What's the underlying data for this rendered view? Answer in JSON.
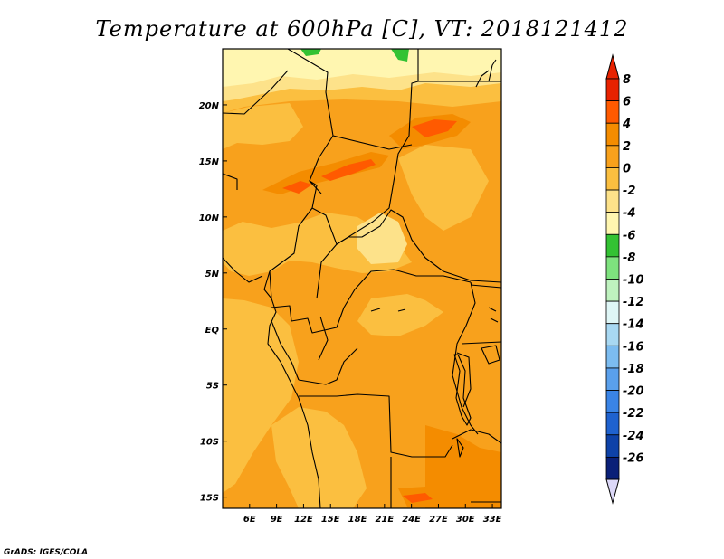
{
  "title": "Temperature at 600hPa [C], VT: 2018121412",
  "credit": "GrADS: IGES/COLA",
  "map": {
    "lon_range": [
      3,
      34
    ],
    "lat_range": [
      -16,
      25
    ],
    "x_ticks": [
      {
        "lon": 6,
        "label": "6E"
      },
      {
        "lon": 9,
        "label": "9E"
      },
      {
        "lon": 12,
        "label": "12E"
      },
      {
        "lon": 15,
        "label": "15E"
      },
      {
        "lon": 18,
        "label": "18E"
      },
      {
        "lon": 21,
        "label": "21E"
      },
      {
        "lon": 24,
        "label": "24E"
      },
      {
        "lon": 27,
        "label": "27E"
      },
      {
        "lon": 30,
        "label": "30E"
      },
      {
        "lon": 33,
        "label": "33E"
      }
    ],
    "y_ticks": [
      {
        "lat": 20,
        "label": "20N"
      },
      {
        "lat": 15,
        "label": "15N"
      },
      {
        "lat": 10,
        "label": "10N"
      },
      {
        "lat": 5,
        "label": "5N"
      },
      {
        "lat": 0,
        "label": "EQ"
      },
      {
        "lat": -5,
        "label": "5S"
      },
      {
        "lat": -10,
        "label": "10S"
      },
      {
        "lat": -15,
        "label": "15S"
      }
    ]
  },
  "colorbar": {
    "levels": [
      "8",
      "6",
      "4",
      "2",
      "0",
      "-2",
      "-4",
      "-6",
      "-8",
      "-10",
      "-12",
      "-14",
      "-16",
      "-18",
      "-20",
      "-22",
      "-24",
      "-26"
    ],
    "colors": [
      "#e82200",
      "#ff5a00",
      "#f48c00",
      "#f8a11c",
      "#fbbf40",
      "#fde28a",
      "#fff6b0",
      "#33c233",
      "#7ee27e",
      "#bff2bf",
      "#dff6f6",
      "#a8d8f2",
      "#7cbcf0",
      "#5aa0ec",
      "#3a84e6",
      "#1f62cf",
      "#0e42a8",
      "#0a2078",
      "#06105a"
    ],
    "top_arrow_color": "#e82200",
    "bottom_arrow_color": "#dcd8f8"
  }
}
